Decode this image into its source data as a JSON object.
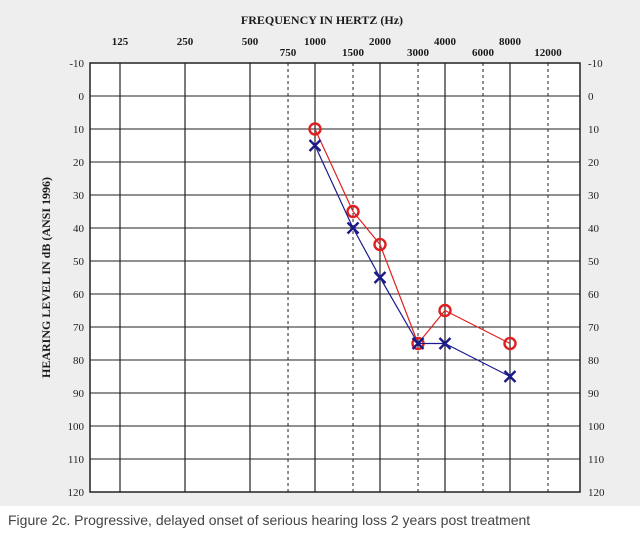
{
  "caption": "Figure 2c. Progressive, delayed onset of serious hearing loss 2 years post treatment",
  "chart_data": {
    "type": "line",
    "title": "FREQUENCY IN HERTZ (Hz)",
    "xlabel": "FREQUENCY IN HERTZ (Hz)",
    "ylabel": "HEARING LEVEL IN dB (ANSI 1996)",
    "x_scale": "log",
    "x_major": [
      125,
      250,
      500,
      1000,
      2000,
      4000,
      8000
    ],
    "x_minor": [
      750,
      1500,
      3000,
      6000,
      12000
    ],
    "x_ticks": [
      125,
      250,
      500,
      750,
      1000,
      1500,
      2000,
      3000,
      4000,
      6000,
      8000,
      12000
    ],
    "ylim": [
      -10,
      120
    ],
    "y_ticks": [
      -10,
      0,
      10,
      20,
      30,
      40,
      50,
      60,
      70,
      80,
      90,
      100,
      110,
      120
    ],
    "y_inverted": true,
    "grid": true,
    "series": [
      {
        "marker": "circle",
        "color": "#e02020",
        "points": [
          {
            "x": 1000,
            "y": 10
          },
          {
            "x": 1500,
            "y": 35
          },
          {
            "x": 2000,
            "y": 45
          },
          {
            "x": 3000,
            "y": 75
          },
          {
            "x": 4000,
            "y": 65
          },
          {
            "x": 8000,
            "y": 75
          }
        ]
      },
      {
        "marker": "cross",
        "color": "#1a1a8c",
        "points": [
          {
            "x": 1000,
            "y": 15
          },
          {
            "x": 1500,
            "y": 40
          },
          {
            "x": 2000,
            "y": 55
          },
          {
            "x": 3000,
            "y": 75
          },
          {
            "x": 4000,
            "y": 75
          },
          {
            "x": 8000,
            "y": 85
          }
        ]
      }
    ]
  }
}
